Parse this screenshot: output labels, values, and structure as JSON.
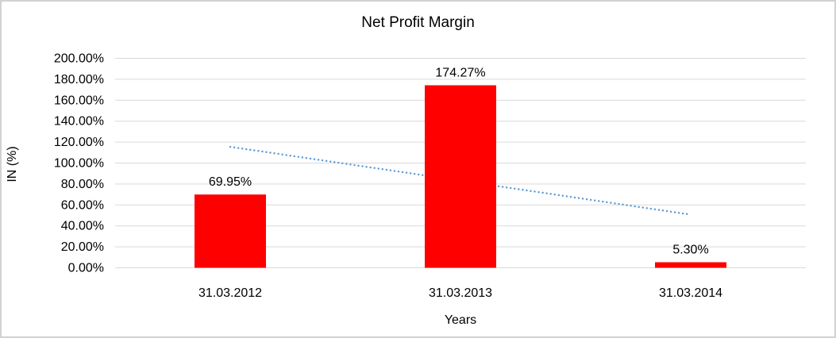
{
  "chart_data": {
    "type": "bar",
    "title": "Net Profit Margin",
    "xlabel": "Years",
    "ylabel": "IN (%)",
    "categories": [
      "31.03.2012",
      "31.03.2013",
      "31.03.2014"
    ],
    "values": [
      69.95,
      174.27,
      5.3
    ],
    "data_labels": [
      "69.95%",
      "174.27%",
      "5.30%"
    ],
    "bar_color": "#FF0000",
    "ylim": [
      0,
      200
    ],
    "ytick_step": 20,
    "ytick_labels": [
      "0.00%",
      "20.00%",
      "40.00%",
      "60.00%",
      "80.00%",
      "100.00%",
      "120.00%",
      "140.00%",
      "160.00%",
      "180.00%",
      "200.00%"
    ],
    "grid": true,
    "gridline_color": "#D9D9D9",
    "legend": "none",
    "trendline": {
      "type": "linear",
      "style": "dotted",
      "color": "#5B9BD5",
      "values": [
        115.5,
        83.2,
        50.8
      ]
    }
  }
}
